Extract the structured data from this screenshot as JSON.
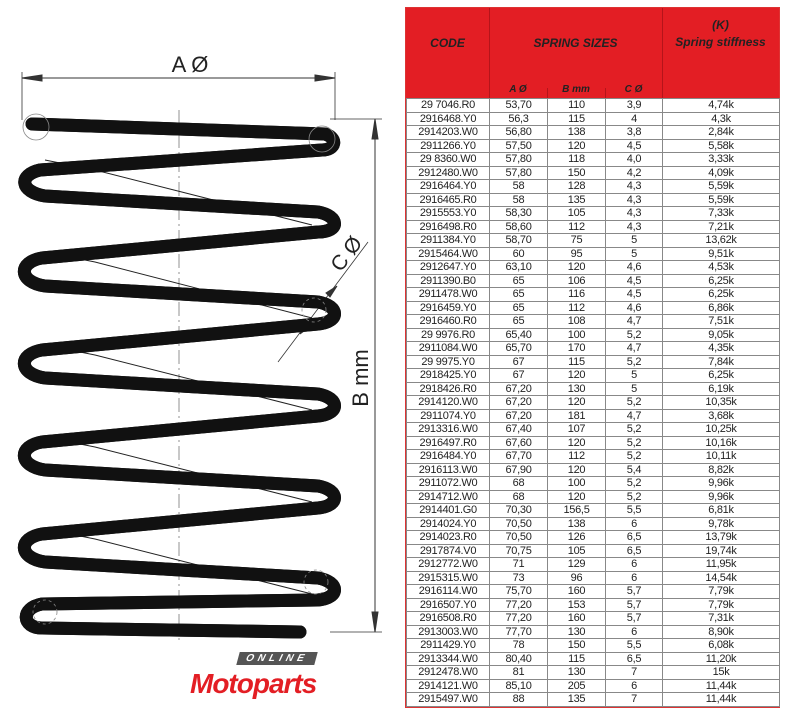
{
  "drawing": {
    "label_a": "A Ø",
    "label_b": "B mm",
    "label_c": "C Ø"
  },
  "table": {
    "header": {
      "code": "CODE",
      "spring_sizes": "SPRING SIZES",
      "k_symbol": "(K)",
      "stiffness": "Spring stiffness",
      "a": "A Ø",
      "b": "B mm",
      "c": "C Ø"
    },
    "header_color": "#e31e24",
    "rows": [
      [
        "29 7046.R0",
        "53,70",
        "110",
        "3,9",
        "4,74k"
      ],
      [
        "2916468.Y0",
        "56,3",
        "115",
        "4",
        "4,3k"
      ],
      [
        "2914203.W0",
        "56,80",
        "138",
        "3,8",
        "2,84k"
      ],
      [
        "2911266.Y0",
        "57,50",
        "120",
        "4,5",
        "5,58k"
      ],
      [
        "29 8360.W0",
        "57,80",
        "118",
        "4,0",
        "3,33k"
      ],
      [
        "2912480.W0",
        "57,80",
        "150",
        "4,2",
        "4,09k"
      ],
      [
        "2916464.Y0",
        "58",
        "128",
        "4,3",
        "5,59k"
      ],
      [
        "2916465.R0",
        "58",
        "135",
        "4,3",
        "5,59k"
      ],
      [
        "2915553.Y0",
        "58,30",
        "105",
        "4,3",
        "7,33k"
      ],
      [
        "2916498.R0",
        "58,60",
        "112",
        "4,3",
        "7,21k"
      ],
      [
        "2911384.Y0",
        "58,70",
        "75",
        "5",
        "13,62k"
      ],
      [
        "2915464.W0",
        "60",
        "95",
        "5",
        "9,51k"
      ],
      [
        "2912647.Y0",
        "63,10",
        "120",
        "4,6",
        "4,53k"
      ],
      [
        "2911390.B0",
        "65",
        "106",
        "4,5",
        "6,25k"
      ],
      [
        "2911478.W0",
        "65",
        "116",
        "4,5",
        "6,25k"
      ],
      [
        "2916459.Y0",
        "65",
        "112",
        "4,6",
        "6,86k"
      ],
      [
        "2916460.R0",
        "65",
        "108",
        "4,7",
        "7,51k"
      ],
      [
        "29 9976.R0",
        "65,40",
        "100",
        "5,2",
        "9,05k"
      ],
      [
        "2911084.W0",
        "65,70",
        "170",
        "4,7",
        "4,35k"
      ],
      [
        "29 9975.Y0",
        "67",
        "115",
        "5,2",
        "7,84k"
      ],
      [
        "2918425.Y0",
        "67",
        "120",
        "5",
        "6,25k"
      ],
      [
        "2918426.R0",
        "67,20",
        "130",
        "5",
        "6,19k"
      ],
      [
        "2914120.W0",
        "67,20",
        "120",
        "5,2",
        "10,35k"
      ],
      [
        "2911074.Y0",
        "67,20",
        "181",
        "4,7",
        "3,68k"
      ],
      [
        "2913316.W0",
        "67,40",
        "107",
        "5,2",
        "10,25k"
      ],
      [
        "2916497.R0",
        "67,60",
        "120",
        "5,2",
        "10,16k"
      ],
      [
        "2916484.Y0",
        "67,70",
        "112",
        "5,2",
        "10,11k"
      ],
      [
        "2916113.W0",
        "67,90",
        "120",
        "5,4",
        "8,82k"
      ],
      [
        "2911072.W0",
        "68",
        "100",
        "5,2",
        "9,96k"
      ],
      [
        "2914712.W0",
        "68",
        "120",
        "5,2",
        "9,96k"
      ],
      [
        "2914401.G0",
        "70,30",
        "156,5",
        "5,5",
        "6,81k"
      ],
      [
        "2914024.Y0",
        "70,50",
        "138",
        "6",
        "9,78k"
      ],
      [
        "2914023.R0",
        "70,50",
        "126",
        "6,5",
        "13,79k"
      ],
      [
        "2917874.V0",
        "70,75",
        "105",
        "6,5",
        "19,74k"
      ],
      [
        "2912772.W0",
        "71",
        "129",
        "6",
        "11,95k"
      ],
      [
        "2915315.W0",
        "73",
        "96",
        "6",
        "14,54k"
      ],
      [
        "2916114.W0",
        "75,70",
        "160",
        "5,7",
        "7,79k"
      ],
      [
        "2916507.Y0",
        "77,20",
        "153",
        "5,7",
        "7,79k"
      ],
      [
        "2916508.R0",
        "77,20",
        "160",
        "5,7",
        "7,31k"
      ],
      [
        "2913003.W0",
        "77,70",
        "130",
        "6",
        "8,90k"
      ],
      [
        "2911429.Y0",
        "78",
        "150",
        "5,5",
        "6,08k"
      ],
      [
        "2913344.W0",
        "80,40",
        "115",
        "6,5",
        "11,20k"
      ],
      [
        "2912478.W0",
        "81",
        "130",
        "7",
        "15k"
      ],
      [
        "2914121.W0",
        "85,10",
        "205",
        "6",
        "11,44k"
      ],
      [
        "2915497.W0",
        "88",
        "135",
        "7",
        "11,44k"
      ]
    ]
  },
  "watermark": {
    "online": "ONLINE",
    "brand": "Motoparts",
    "brand_color": "#e31e24"
  }
}
